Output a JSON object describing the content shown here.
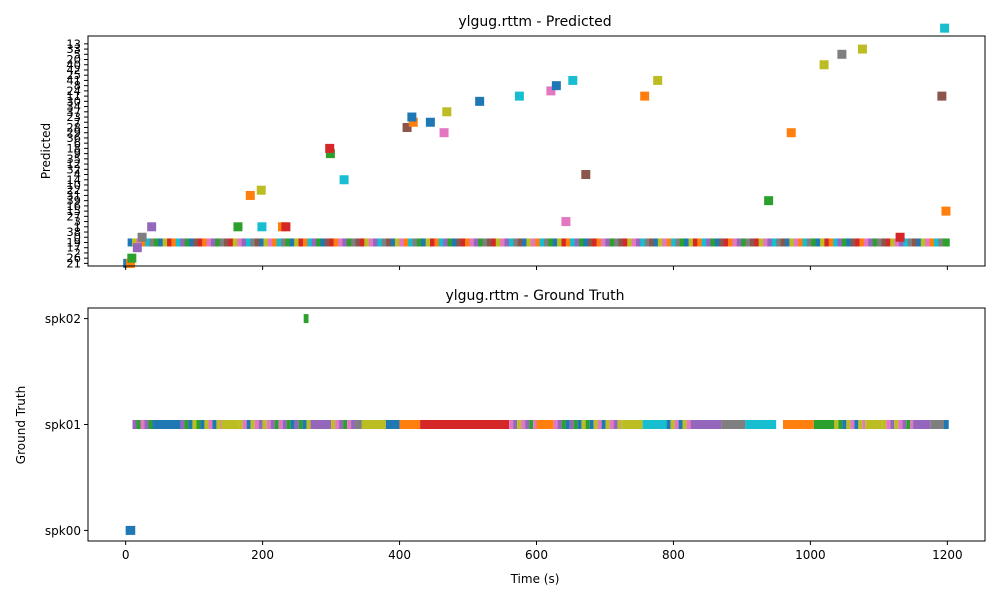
{
  "chart_data": [
    {
      "type": "scatter",
      "title": "ylgug.rttm - Predicted",
      "xlabel": "",
      "ylabel": "Predicted",
      "xlim": [
        -55,
        1255
      ],
      "ylim": [
        -0.5,
        43.5
      ],
      "xticks": [
        0,
        200,
        400,
        600,
        800,
        1000,
        1200
      ],
      "xtick_labels": [
        "",
        "",
        "",
        "",
        "",
        "",
        ""
      ],
      "yticks": [
        0,
        1,
        2,
        3,
        4,
        5,
        6,
        7,
        8,
        9,
        10,
        11,
        12,
        13,
        14,
        15,
        16,
        17,
        18,
        19,
        20,
        21,
        22,
        23,
        24,
        25,
        26,
        27,
        28,
        29,
        30,
        31,
        32,
        33,
        34,
        35,
        36,
        37,
        38,
        39,
        40,
        41,
        42
      ],
      "ytick_labels": [
        "21",
        "26",
        "2",
        "17",
        "19",
        "0",
        "38",
        "1",
        "3",
        "27",
        "15",
        "16",
        "39",
        "31",
        "22",
        "10",
        "14",
        "4",
        "32",
        "12",
        "35",
        "9",
        "18",
        "6",
        "36",
        "29",
        "28",
        "7",
        "23",
        "37",
        "34",
        "30",
        "11",
        "24",
        "8",
        "41",
        "25",
        "42",
        "40",
        "20",
        "5",
        "33",
        "13"
      ],
      "grid": false,
      "legend": "none",
      "main_band": {
        "y_index": 4,
        "x_range": [
          8,
          1202
        ],
        "spacing": 6.4
      },
      "colors": [
        "#1f77b4",
        "#ff7f0e",
        "#2ca02c",
        "#d62728",
        "#9467bd",
        "#8c564b",
        "#e377c2",
        "#7f7f7f",
        "#bcbd22",
        "#17becf"
      ],
      "points": [
        {
          "x": 3,
          "y": 0,
          "c": "#1f77b4"
        },
        {
          "x": 7,
          "y": 0,
          "c": "#ff7f0e"
        },
        {
          "x": 9,
          "y": 1,
          "c": "#2ca02c"
        },
        {
          "x": 17,
          "y": 3,
          "c": "#9467bd"
        },
        {
          "x": 24,
          "y": 5,
          "c": "#7f7f7f"
        },
        {
          "x": 38,
          "y": 7,
          "c": "#9467bd"
        },
        {
          "x": 164,
          "y": 7,
          "c": "#2ca02c"
        },
        {
          "x": 199,
          "y": 7,
          "c": "#17becf"
        },
        {
          "x": 229,
          "y": 7,
          "c": "#ff7f0e"
        },
        {
          "x": 234,
          "y": 7,
          "c": "#d62728"
        },
        {
          "x": 182,
          "y": 13,
          "c": "#ff7f0e"
        },
        {
          "x": 198,
          "y": 14,
          "c": "#bcbd22"
        },
        {
          "x": 319,
          "y": 16,
          "c": "#17becf"
        },
        {
          "x": 299,
          "y": 21,
          "c": "#2ca02c"
        },
        {
          "x": 298,
          "y": 22,
          "c": "#d62728"
        },
        {
          "x": 411,
          "y": 26,
          "c": "#8c564b"
        },
        {
          "x": 420,
          "y": 27,
          "c": "#ff7f0e"
        },
        {
          "x": 418,
          "y": 28,
          "c": "#1f77b4"
        },
        {
          "x": 445,
          "y": 27,
          "c": "#1f77b4"
        },
        {
          "x": 465,
          "y": 25,
          "c": "#e377c2"
        },
        {
          "x": 469,
          "y": 29,
          "c": "#bcbd22"
        },
        {
          "x": 517,
          "y": 31,
          "c": "#1f77b4"
        },
        {
          "x": 575,
          "y": 32,
          "c": "#17becf"
        },
        {
          "x": 621,
          "y": 33,
          "c": "#e377c2"
        },
        {
          "x": 629,
          "y": 34,
          "c": "#1f77b4"
        },
        {
          "x": 653,
          "y": 35,
          "c": "#17becf"
        },
        {
          "x": 672,
          "y": 17,
          "c": "#8c564b"
        },
        {
          "x": 643,
          "y": 8,
          "c": "#e377c2"
        },
        {
          "x": 758,
          "y": 32,
          "c": "#ff7f0e"
        },
        {
          "x": 777,
          "y": 35,
          "c": "#bcbd22"
        },
        {
          "x": 972,
          "y": 25,
          "c": "#ff7f0e"
        },
        {
          "x": 939,
          "y": 12,
          "c": "#2ca02c"
        },
        {
          "x": 1020,
          "y": 38,
          "c": "#bcbd22"
        },
        {
          "x": 1046,
          "y": 40,
          "c": "#7f7f7f"
        },
        {
          "x": 1076,
          "y": 41,
          "c": "#bcbd22"
        },
        {
          "x": 1131,
          "y": 5,
          "c": "#d62728"
        },
        {
          "x": 1192,
          "y": 32,
          "c": "#8c564b"
        },
        {
          "x": 1198,
          "y": 10,
          "c": "#ff7f0e"
        },
        {
          "x": 1196,
          "y": 45,
          "c": "#17becf"
        }
      ]
    },
    {
      "type": "scatter",
      "title": "ylgug.rttm - Ground Truth",
      "xlabel": "Time (s)",
      "ylabel": "Ground Truth",
      "xlim": [
        -55,
        1255
      ],
      "ylim": [
        -0.1,
        2.1
      ],
      "xticks": [
        0,
        200,
        400,
        600,
        800,
        1000,
        1200
      ],
      "xtick_labels": [
        "0",
        "200",
        "400",
        "600",
        "800",
        "1000",
        "1200"
      ],
      "yticks": [
        0,
        1,
        2
      ],
      "ytick_labels": [
        "spk00",
        "spk01",
        "spk02"
      ],
      "grid": false,
      "legend": "none",
      "segments": [
        {
          "x0": 0,
          "x1": 14,
          "y": 0,
          "c": "#1f77b4"
        },
        {
          "x0": 260,
          "x1": 267,
          "y": 2,
          "c": "#2ca02c"
        },
        {
          "x0": 10,
          "x1": 40,
          "y": 1,
          "c": "mix"
        },
        {
          "x0": 40,
          "x1": 80,
          "y": 1,
          "c": "#1f77b4"
        },
        {
          "x0": 80,
          "x1": 160,
          "y": 1,
          "c": "mix"
        },
        {
          "x0": 140,
          "x1": 165,
          "y": 1,
          "c": "#bcbd22"
        },
        {
          "x0": 165,
          "x1": 270,
          "y": 1,
          "c": "mix"
        },
        {
          "x0": 270,
          "x1": 300,
          "y": 1,
          "c": "#9467bd"
        },
        {
          "x0": 300,
          "x1": 335,
          "y": 1,
          "c": "mix"
        },
        {
          "x0": 335,
          "x1": 345,
          "y": 1,
          "c": "#7f7f7f"
        },
        {
          "x0": 345,
          "x1": 380,
          "y": 1,
          "c": "#bcbd22"
        },
        {
          "x0": 380,
          "x1": 400,
          "y": 1,
          "c": "#1f77b4"
        },
        {
          "x0": 400,
          "x1": 430,
          "y": 1,
          "c": "#ff7f0e"
        },
        {
          "x0": 430,
          "x1": 560,
          "y": 1,
          "c": "#d62728"
        },
        {
          "x0": 560,
          "x1": 600,
          "y": 1,
          "c": "mix"
        },
        {
          "x0": 600,
          "x1": 625,
          "y": 1,
          "c": "#ff7f0e"
        },
        {
          "x0": 625,
          "x1": 725,
          "y": 1,
          "c": "mix"
        },
        {
          "x0": 725,
          "x1": 755,
          "y": 1,
          "c": "#bcbd22"
        },
        {
          "x0": 755,
          "x1": 790,
          "y": 1,
          "c": "#17becf"
        },
        {
          "x0": 790,
          "x1": 830,
          "y": 1,
          "c": "mix"
        },
        {
          "x0": 830,
          "x1": 870,
          "y": 1,
          "c": "#9467bd"
        },
        {
          "x0": 870,
          "x1": 905,
          "y": 1,
          "c": "#7f7f7f"
        },
        {
          "x0": 905,
          "x1": 950,
          "y": 1,
          "c": "#17becf"
        },
        {
          "x0": 960,
          "x1": 1005,
          "y": 1,
          "c": "#ff7f0e"
        },
        {
          "x0": 1005,
          "x1": 1035,
          "y": 1,
          "c": "#2ca02c"
        },
        {
          "x0": 1035,
          "x1": 1080,
          "y": 1,
          "c": "mix"
        },
        {
          "x0": 1080,
          "x1": 1105,
          "y": 1,
          "c": "#bcbd22"
        },
        {
          "x0": 1105,
          "x1": 1150,
          "y": 1,
          "c": "mix"
        },
        {
          "x0": 1150,
          "x1": 1175,
          "y": 1,
          "c": "#9467bd"
        },
        {
          "x0": 1175,
          "x1": 1200,
          "y": 1,
          "c": "#7f7f7f"
        },
        {
          "x0": 1195,
          "x1": 1202,
          "y": 1,
          "c": "#1f77b4"
        }
      ]
    }
  ]
}
